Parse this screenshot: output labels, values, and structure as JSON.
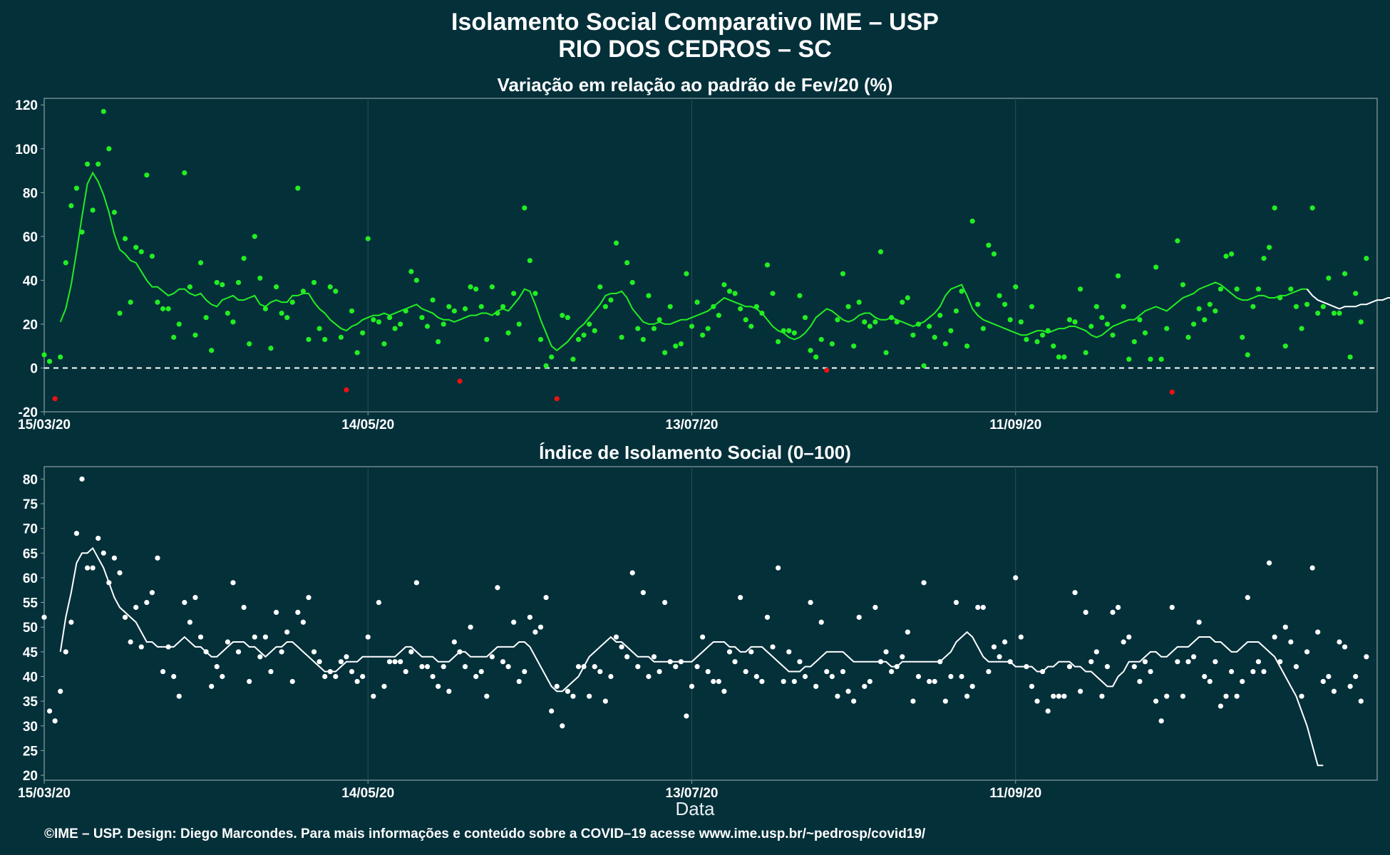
{
  "header": {
    "title_line1": "Isolamento Social Comparativo IME – USP",
    "title_line2": "RIO DOS CEDROS – SC"
  },
  "footer": "©IME – USP. Design: Diego Marcondes. Para mais informações e conteúdo sobre a COVID–19 acesse www.ime.usp.br/~pedrosp/covid19/",
  "colors": {
    "background": "#04303a",
    "positive_points": "#22ee22",
    "negative_points": "#ee1111",
    "trend_line_top": "#22ee22",
    "index_points": "#ffffff",
    "frame": "#8aa0a6"
  },
  "chart_data": [
    {
      "type": "scatter",
      "title": "Variação em relação ao padrão de Fev/20 (%)",
      "xlabel": "",
      "ylabel": "",
      "x_ticks": [
        "15/03/20",
        "14/05/20",
        "13/07/20",
        "11/09/20"
      ],
      "x_tick_days": [
        0,
        60,
        120,
        180
      ],
      "x_range_days": [
        0,
        247
      ],
      "y_ticks": [
        -20,
        0,
        20,
        40,
        60,
        80,
        100,
        120
      ],
      "ylim": [
        -20,
        123
      ],
      "reference_line": 0,
      "grid": true,
      "values": [
        6,
        3,
        -14,
        5,
        48,
        74,
        82,
        62,
        93,
        72,
        93,
        117,
        100,
        71,
        25,
        59,
        30,
        55,
        53,
        88,
        51,
        30,
        27,
        27,
        14,
        20,
        89,
        37,
        15,
        48,
        23,
        8,
        39,
        38,
        25,
        21,
        39,
        50,
        11,
        60,
        41,
        27,
        9,
        37,
        25,
        23,
        30,
        82,
        35,
        13,
        39,
        18,
        13,
        37,
        35,
        14,
        -10,
        26,
        7,
        16,
        59,
        22,
        21,
        11,
        23,
        18,
        20,
        26,
        44,
        40,
        23,
        19,
        31,
        12,
        20,
        28,
        26,
        -6,
        27,
        37,
        36,
        28,
        13,
        37,
        25,
        28,
        16,
        34,
        20,
        73,
        49,
        34,
        13,
        1,
        5,
        -14,
        24,
        23,
        4,
        13,
        15,
        20,
        17,
        37,
        28,
        31,
        57,
        14,
        48,
        39,
        18,
        13,
        33,
        18,
        22,
        7,
        28,
        10,
        11,
        43,
        19,
        30,
        15,
        18,
        28,
        24,
        38,
        35,
        34,
        27,
        22,
        19,
        28,
        25,
        47,
        34,
        12,
        17,
        17,
        16,
        33,
        23,
        8,
        5,
        13,
        -1,
        11,
        22,
        43,
        28,
        10,
        30,
        21,
        19,
        21,
        53,
        7,
        23,
        21,
        30,
        32,
        15,
        20,
        1,
        19,
        14,
        24,
        11,
        17,
        26,
        35,
        10,
        67,
        29,
        18,
        56,
        52,
        33,
        29,
        22,
        37,
        21,
        13,
        28,
        12,
        15,
        17,
        10,
        5,
        5,
        22,
        21,
        36,
        7,
        19,
        28,
        23,
        20,
        15,
        42,
        28,
        4,
        12,
        22,
        16,
        4,
        46,
        4,
        18,
        -11,
        58,
        38,
        14,
        20,
        27,
        22,
        29,
        26,
        36,
        51,
        52,
        36,
        14,
        6,
        28,
        36,
        50,
        55,
        73,
        32,
        10,
        36,
        28,
        18,
        29,
        73,
        25,
        28,
        41,
        25,
        25,
        43,
        5,
        34,
        21,
        50
      ],
      "trend": [
        null,
        null,
        null,
        21,
        27,
        38,
        53,
        69,
        84,
        89,
        85,
        79,
        71,
        61,
        54,
        52,
        49,
        48,
        44,
        40,
        37,
        37,
        35,
        33,
        34,
        36,
        36,
        34,
        33,
        34,
        31,
        29,
        28,
        31,
        32,
        33,
        31,
        31,
        32,
        33,
        29,
        28,
        30,
        31,
        30,
        30,
        33,
        33,
        34,
        34,
        30,
        27,
        25,
        22,
        20,
        18,
        17,
        19,
        20,
        22,
        23,
        24,
        24,
        25,
        24,
        25,
        26,
        27,
        28,
        29,
        27,
        26,
        25,
        23,
        22,
        22,
        21,
        22,
        23,
        24,
        24,
        25,
        25,
        24,
        26,
        27,
        26,
        29,
        32,
        36,
        35,
        29,
        22,
        16,
        10,
        8,
        10,
        12,
        15,
        18,
        20,
        23,
        26,
        29,
        33,
        34,
        34,
        35,
        32,
        27,
        24,
        21,
        20,
        20,
        21,
        20,
        20,
        21,
        22,
        22,
        23,
        24,
        25,
        26,
        28,
        30,
        32,
        31,
        30,
        29,
        28,
        28,
        27,
        25,
        22,
        19,
        17,
        16,
        14,
        13,
        14,
        16,
        19,
        23,
        25,
        27,
        26,
        24,
        22,
        21,
        22,
        24,
        25,
        25,
        23,
        22,
        22,
        23,
        22,
        21,
        20,
        19,
        20,
        21,
        23,
        25,
        28,
        33,
        36,
        37,
        38,
        33,
        27,
        24,
        22,
        21,
        20,
        19,
        18,
        17,
        16,
        15,
        15,
        16,
        17,
        17,
        16,
        17,
        18,
        18,
        19,
        19,
        18,
        17,
        15,
        14,
        15,
        17,
        19,
        20,
        21,
        22,
        22,
        24,
        26,
        27,
        28,
        27,
        26,
        28,
        30,
        32,
        33,
        34,
        36,
        37,
        38,
        39,
        38,
        36,
        34,
        32,
        31,
        31,
        32,
        33,
        33,
        32,
        32,
        33,
        33,
        34,
        35,
        36,
        36,
        33,
        31,
        30,
        29,
        28,
        27,
        28,
        28,
        28,
        29,
        29,
        30,
        31,
        31,
        32,
        32,
        33
      ],
      "trend_white_from": 234
    },
    {
      "type": "scatter",
      "title": "Índice de Isolamento Social (0–100)",
      "xlabel": "Data",
      "ylabel": "",
      "x_ticks": [
        "15/03/20",
        "14/05/20",
        "13/07/20",
        "11/09/20"
      ],
      "x_tick_days": [
        0,
        60,
        120,
        180
      ],
      "x_range_days": [
        0,
        247
      ],
      "y_ticks": [
        20,
        25,
        30,
        35,
        40,
        45,
        50,
        55,
        60,
        65,
        70,
        75,
        80
      ],
      "ylim": [
        19,
        82.5
      ],
      "grid": true,
      "values": [
        52,
        33,
        31,
        37,
        45,
        51,
        69,
        80,
        62,
        62,
        68,
        65,
        59,
        64,
        61,
        52,
        47,
        54,
        46,
        55,
        57,
        64,
        41,
        46,
        40,
        36,
        55,
        51,
        56,
        48,
        45,
        38,
        42,
        40,
        47,
        59,
        45,
        54,
        39,
        48,
        44,
        48,
        41,
        53,
        45,
        49,
        39,
        53,
        51,
        56,
        45,
        43,
        40,
        41,
        40,
        43,
        44,
        41,
        39,
        40,
        48,
        36,
        55,
        38,
        43,
        43,
        43,
        41,
        45,
        59,
        42,
        42,
        40,
        38,
        42,
        37,
        47,
        45,
        42,
        50,
        40,
        41,
        36,
        44,
        58,
        43,
        42,
        51,
        39,
        41,
        52,
        49,
        50,
        56,
        33,
        38,
        30,
        37,
        36,
        42,
        42,
        36,
        42,
        41,
        35,
        40,
        48,
        46,
        44,
        61,
        42,
        57,
        40,
        44,
        41,
        55,
        43,
        42,
        43,
        32,
        38,
        42,
        48,
        41,
        39,
        39,
        37,
        45,
        43,
        56,
        41,
        45,
        40,
        39,
        52,
        46,
        62,
        39,
        45,
        39,
        43,
        40,
        55,
        38,
        51,
        41,
        40,
        36,
        41,
        37,
        35,
        52,
        38,
        39,
        54,
        43,
        45,
        41,
        42,
        44,
        49,
        35,
        40,
        59,
        39,
        39,
        43,
        35,
        40,
        55,
        40,
        36,
        38,
        54,
        54,
        41,
        46,
        44,
        47,
        43,
        60,
        48,
        42,
        38,
        35,
        41,
        33,
        36,
        36,
        36,
        42,
        57,
        37,
        53,
        43,
        45,
        36,
        42,
        53,
        54,
        47,
        48,
        42,
        39,
        43,
        41,
        35,
        31,
        36,
        54,
        43,
        36,
        43,
        44,
        51,
        40,
        39,
        43,
        34,
        36,
        41,
        36,
        39,
        56,
        41,
        43,
        41,
        63,
        48,
        43,
        50,
        47,
        42,
        36,
        45,
        62,
        49,
        39,
        40,
        37,
        47,
        46,
        38,
        40,
        35,
        44
      ],
      "trend": [
        null,
        null,
        null,
        45,
        52,
        57,
        63,
        65,
        65,
        66,
        64,
        62,
        59,
        56,
        54,
        53,
        52,
        51,
        49,
        47,
        47,
        46,
        46,
        46,
        46,
        47,
        48,
        47,
        46,
        46,
        45,
        44,
        44,
        45,
        46,
        47,
        47,
        47,
        46,
        46,
        45,
        44,
        45,
        46,
        46,
        47,
        47,
        46,
        45,
        44,
        43,
        42,
        41,
        41,
        41,
        42,
        43,
        43,
        43,
        44,
        44,
        44,
        44,
        44,
        44,
        44,
        45,
        46,
        46,
        45,
        44,
        44,
        44,
        43,
        43,
        43,
        44,
        45,
        45,
        44,
        44,
        44,
        44,
        45,
        46,
        46,
        46,
        46,
        47,
        47,
        46,
        44,
        42,
        40,
        38,
        37,
        37,
        38,
        39,
        40,
        42,
        44,
        45,
        46,
        47,
        48,
        47,
        47,
        46,
        45,
        44,
        44,
        44,
        43,
        43,
        43,
        43,
        43,
        43,
        43,
        43,
        44,
        45,
        46,
        47,
        47,
        47,
        46,
        46,
        45,
        45,
        46,
        46,
        46,
        45,
        44,
        43,
        42,
        41,
        41,
        41,
        42,
        42,
        43,
        44,
        45,
        45,
        45,
        45,
        44,
        43,
        43,
        43,
        43,
        43,
        43,
        43,
        42,
        42,
        43,
        43,
        43,
        43,
        43,
        43,
        43,
        43,
        44,
        45,
        47,
        48,
        49,
        48,
        46,
        44,
        43,
        43,
        43,
        43,
        43,
        42,
        42,
        42,
        42,
        41,
        41,
        42,
        42,
        43,
        43,
        43,
        42,
        42,
        41,
        41,
        40,
        39,
        38,
        38,
        40,
        41,
        43,
        43,
        43,
        44,
        45,
        45,
        44,
        44,
        45,
        46,
        46,
        46,
        47,
        48,
        48,
        48,
        47,
        47,
        46,
        45,
        45,
        46,
        47,
        47,
        47,
        46,
        45,
        44,
        42,
        40,
        38,
        36,
        33,
        30,
        26,
        22,
        22
      ]
    }
  ]
}
